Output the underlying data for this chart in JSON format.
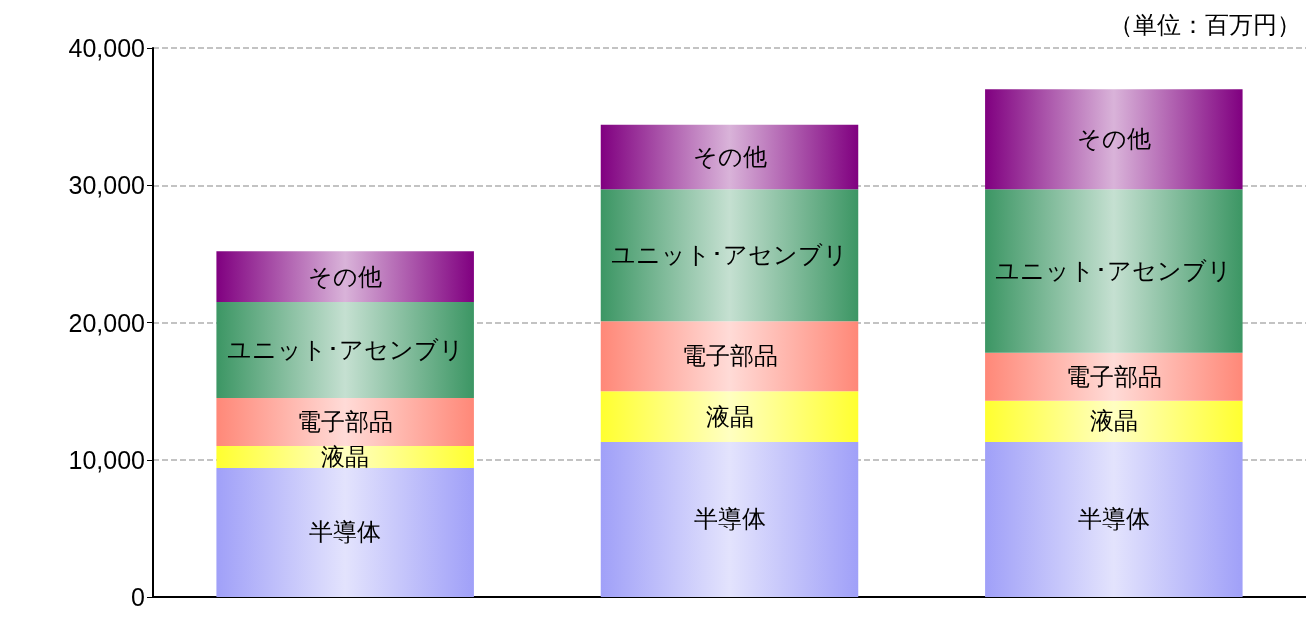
{
  "chart_data": {
    "type": "bar",
    "stacked": true,
    "categories": [
      null,
      null,
      null
    ],
    "series": [
      {
        "name": "半導体",
        "color": "#a0a0f8",
        "values": [
          9400,
          11300,
          11300
        ]
      },
      {
        "name": "液晶",
        "color": "#ffff30",
        "values": [
          1600,
          3700,
          3000
        ]
      },
      {
        "name": "電子部品",
        "color": "#ff8878",
        "values": [
          3500,
          5100,
          3500
        ]
      },
      {
        "name": "ユニット･アセンブリ",
        "color": "#3c9664",
        "values": [
          7000,
          9600,
          11900
        ]
      },
      {
        "name": "その他",
        "color": "#800080",
        "values": [
          3700,
          4700,
          7300
        ]
      }
    ],
    "ylim": [
      0,
      40000
    ],
    "yticks": [
      0,
      {
        "value": 10000,
        "label": "10,000"
      },
      {
        "value": 20000,
        "label": "20,000"
      },
      {
        "value": 30000,
        "label": "30,000"
      },
      {
        "value": 40000,
        "label": "40,000"
      }
    ],
    "grid": "y",
    "legend": false,
    "annotations": [
      "（単位：百万円）"
    ]
  }
}
